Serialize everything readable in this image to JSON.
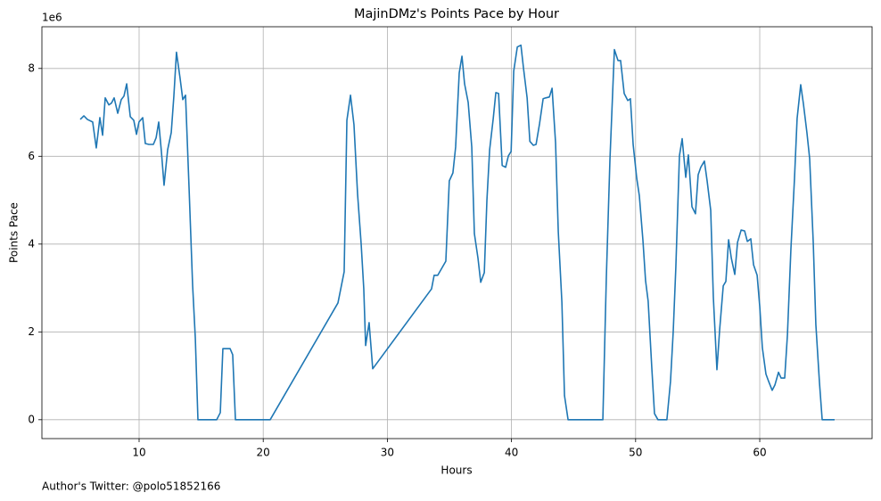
{
  "chart_data": {
    "type": "line",
    "title": "MajinDMz's Points Pace by Hour",
    "x_label": "Hours",
    "y_label": "Points Pace",
    "y_offset_label": "1e6",
    "footnote": "Author's Twitter: @polo51852166",
    "grid": true,
    "xlim": [
      2.17,
      69.05
    ],
    "ylim": [
      -0.43,
      8.95
    ],
    "xticks": [
      10,
      20,
      30,
      40,
      50,
      60
    ],
    "yticks": [
      0,
      2,
      4,
      6,
      8
    ],
    "x": [
      5.26,
      5.55,
      5.83,
      6.26,
      6.55,
      6.84,
      7.06,
      7.27,
      7.56,
      7.77,
      7.99,
      8.28,
      8.56,
      8.78,
      9.0,
      9.29,
      9.57,
      9.79,
      9.99,
      10.29,
      10.5,
      10.79,
      11.15,
      11.37,
      11.58,
      11.8,
      12.01,
      12.3,
      12.59,
      12.8,
      13.01,
      13.3,
      13.52,
      13.74,
      14.03,
      14.31,
      14.53,
      14.74,
      16.25,
      16.54,
      16.75,
      17.33,
      17.54,
      17.76,
      20.56,
      26.02,
      26.52,
      26.74,
      27.03,
      27.31,
      27.6,
      27.89,
      28.1,
      28.25,
      28.53,
      28.82,
      33.56,
      33.77,
      34.06,
      34.71,
      34.99,
      35.28,
      35.5,
      35.79,
      36.01,
      36.22,
      36.51,
      36.8,
      37.01,
      37.3,
      37.52,
      37.81,
      38.02,
      38.24,
      38.53,
      38.74,
      38.96,
      39.25,
      39.53,
      39.75,
      39.97,
      40.18,
      40.47,
      40.76,
      40.97,
      41.26,
      41.48,
      41.76,
      41.98,
      42.26,
      42.55,
      42.76,
      43.05,
      43.27,
      43.55,
      43.77,
      44.06,
      44.27,
      44.56,
      47.36,
      47.64,
      47.93,
      48.29,
      48.58,
      48.79,
      49.08,
      49.37,
      49.58,
      49.8,
      50.09,
      50.3,
      50.59,
      50.8,
      51.01,
      51.3,
      51.52,
      51.8,
      52.52,
      52.81,
      53.03,
      53.24,
      53.53,
      53.75,
      54.04,
      54.25,
      54.54,
      54.82,
      55.04,
      55.25,
      55.54,
      55.76,
      56.05,
      56.26,
      56.55,
      56.77,
      57.06,
      57.27,
      57.49,
      57.71,
      57.99,
      58.21,
      58.5,
      58.78,
      59.0,
      59.28,
      59.5,
      59.79,
      60.0,
      60.21,
      60.5,
      60.72,
      61.0,
      61.22,
      61.51,
      61.72,
      62.01,
      62.23,
      62.51,
      62.8,
      63.01,
      63.3,
      63.52,
      63.8,
      64.02,
      64.31,
      64.52,
      64.81,
      65.03,
      66.03
    ],
    "series": [
      {
        "color": "#1f77b4",
        "values": [
          6.84,
          6.92,
          6.84,
          6.78,
          6.19,
          6.88,
          6.48,
          7.33,
          7.17,
          7.21,
          7.33,
          6.98,
          7.29,
          7.37,
          7.65,
          6.9,
          6.82,
          6.5,
          6.78,
          6.88,
          6.29,
          6.27,
          6.27,
          6.42,
          6.78,
          6.09,
          5.34,
          6.15,
          6.54,
          7.37,
          8.37,
          7.78,
          7.29,
          7.39,
          5.24,
          3.07,
          1.85,
          0,
          0,
          0.16,
          1.62,
          1.62,
          1.48,
          0,
          0,
          2.66,
          3.37,
          6.82,
          7.39,
          6.72,
          5.14,
          4.0,
          2.98,
          1.69,
          2.21,
          1.16,
          2.98,
          3.29,
          3.29,
          3.61,
          5.44,
          5.62,
          6.21,
          7.9,
          8.28,
          7.65,
          7.23,
          6.21,
          4.24,
          3.68,
          3.13,
          3.35,
          5.0,
          6.15,
          6.86,
          7.45,
          7.43,
          5.79,
          5.75,
          6.01,
          6.11,
          7.94,
          8.49,
          8.53,
          8.0,
          7.33,
          6.34,
          6.25,
          6.27,
          6.74,
          7.31,
          7.33,
          7.35,
          7.55,
          6.31,
          4.28,
          2.68,
          0.55,
          0,
          0,
          3.23,
          5.91,
          8.43,
          8.18,
          8.18,
          7.43,
          7.27,
          7.31,
          6.27,
          5.5,
          5.1,
          4.08,
          3.17,
          2.7,
          1.2,
          0.14,
          0,
          0,
          0.87,
          2.01,
          3.47,
          6.01,
          6.4,
          5.52,
          6.03,
          4.85,
          4.69,
          5.58,
          5.75,
          5.89,
          5.44,
          4.77,
          2.8,
          1.14,
          2.05,
          3.05,
          3.15,
          4.1,
          3.68,
          3.31,
          4.04,
          4.32,
          4.3,
          4.06,
          4.12,
          3.53,
          3.29,
          2.58,
          1.64,
          1.04,
          0.87,
          0.67,
          0.79,
          1.08,
          0.95,
          0.95,
          1.93,
          3.88,
          5.5,
          6.86,
          7.63,
          7.19,
          6.54,
          5.95,
          4.04,
          2.17,
          0.85,
          0,
          0
        ]
      }
    ]
  }
}
